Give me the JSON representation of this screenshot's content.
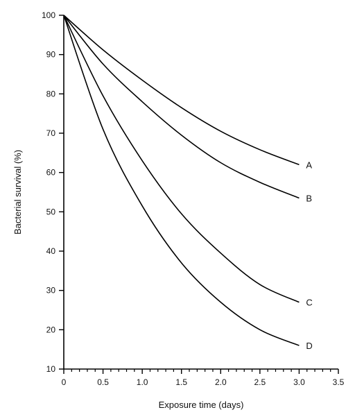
{
  "chart_data": {
    "type": "line",
    "xlabel": "Exposure time (days)",
    "ylabel": "Bacterial survival (%)",
    "xlim": [
      0,
      3.5
    ],
    "ylim": [
      10,
      100
    ],
    "x_ticks": [
      0,
      0.5,
      1.0,
      1.5,
      2.0,
      2.5,
      3.0,
      3.5
    ],
    "x_tick_labels": [
      "0",
      "0.5",
      "1.0",
      "1.5",
      "2.0",
      "2.5",
      "3.0",
      "3.5"
    ],
    "y_ticks": [
      10,
      20,
      30,
      40,
      50,
      60,
      70,
      80,
      90,
      100
    ],
    "y_tick_labels": [
      "10",
      "20",
      "30",
      "40",
      "50",
      "60",
      "70",
      "80",
      "90",
      "100"
    ],
    "grid": false,
    "legend": "inline-right",
    "x": [
      0,
      0.5,
      1.0,
      1.5,
      2.0,
      2.5,
      3.0
    ],
    "series": [
      {
        "name": "A",
        "values": [
          100,
          91.2,
          83.5,
          76.5,
          70.5,
          65.8,
          62.0
        ],
        "color": "#000000"
      },
      {
        "name": "B",
        "values": [
          100,
          87.6,
          78.0,
          69.5,
          62.5,
          57.5,
          53.5
        ],
        "color": "#000000"
      },
      {
        "name": "C",
        "values": [
          100,
          79.5,
          63.0,
          49.5,
          39.5,
          31.5,
          27.0
        ],
        "color": "#000000"
      },
      {
        "name": "D",
        "values": [
          100,
          71.0,
          51.5,
          37.0,
          27.0,
          20.0,
          16.0
        ],
        "color": "#000000"
      }
    ]
  }
}
